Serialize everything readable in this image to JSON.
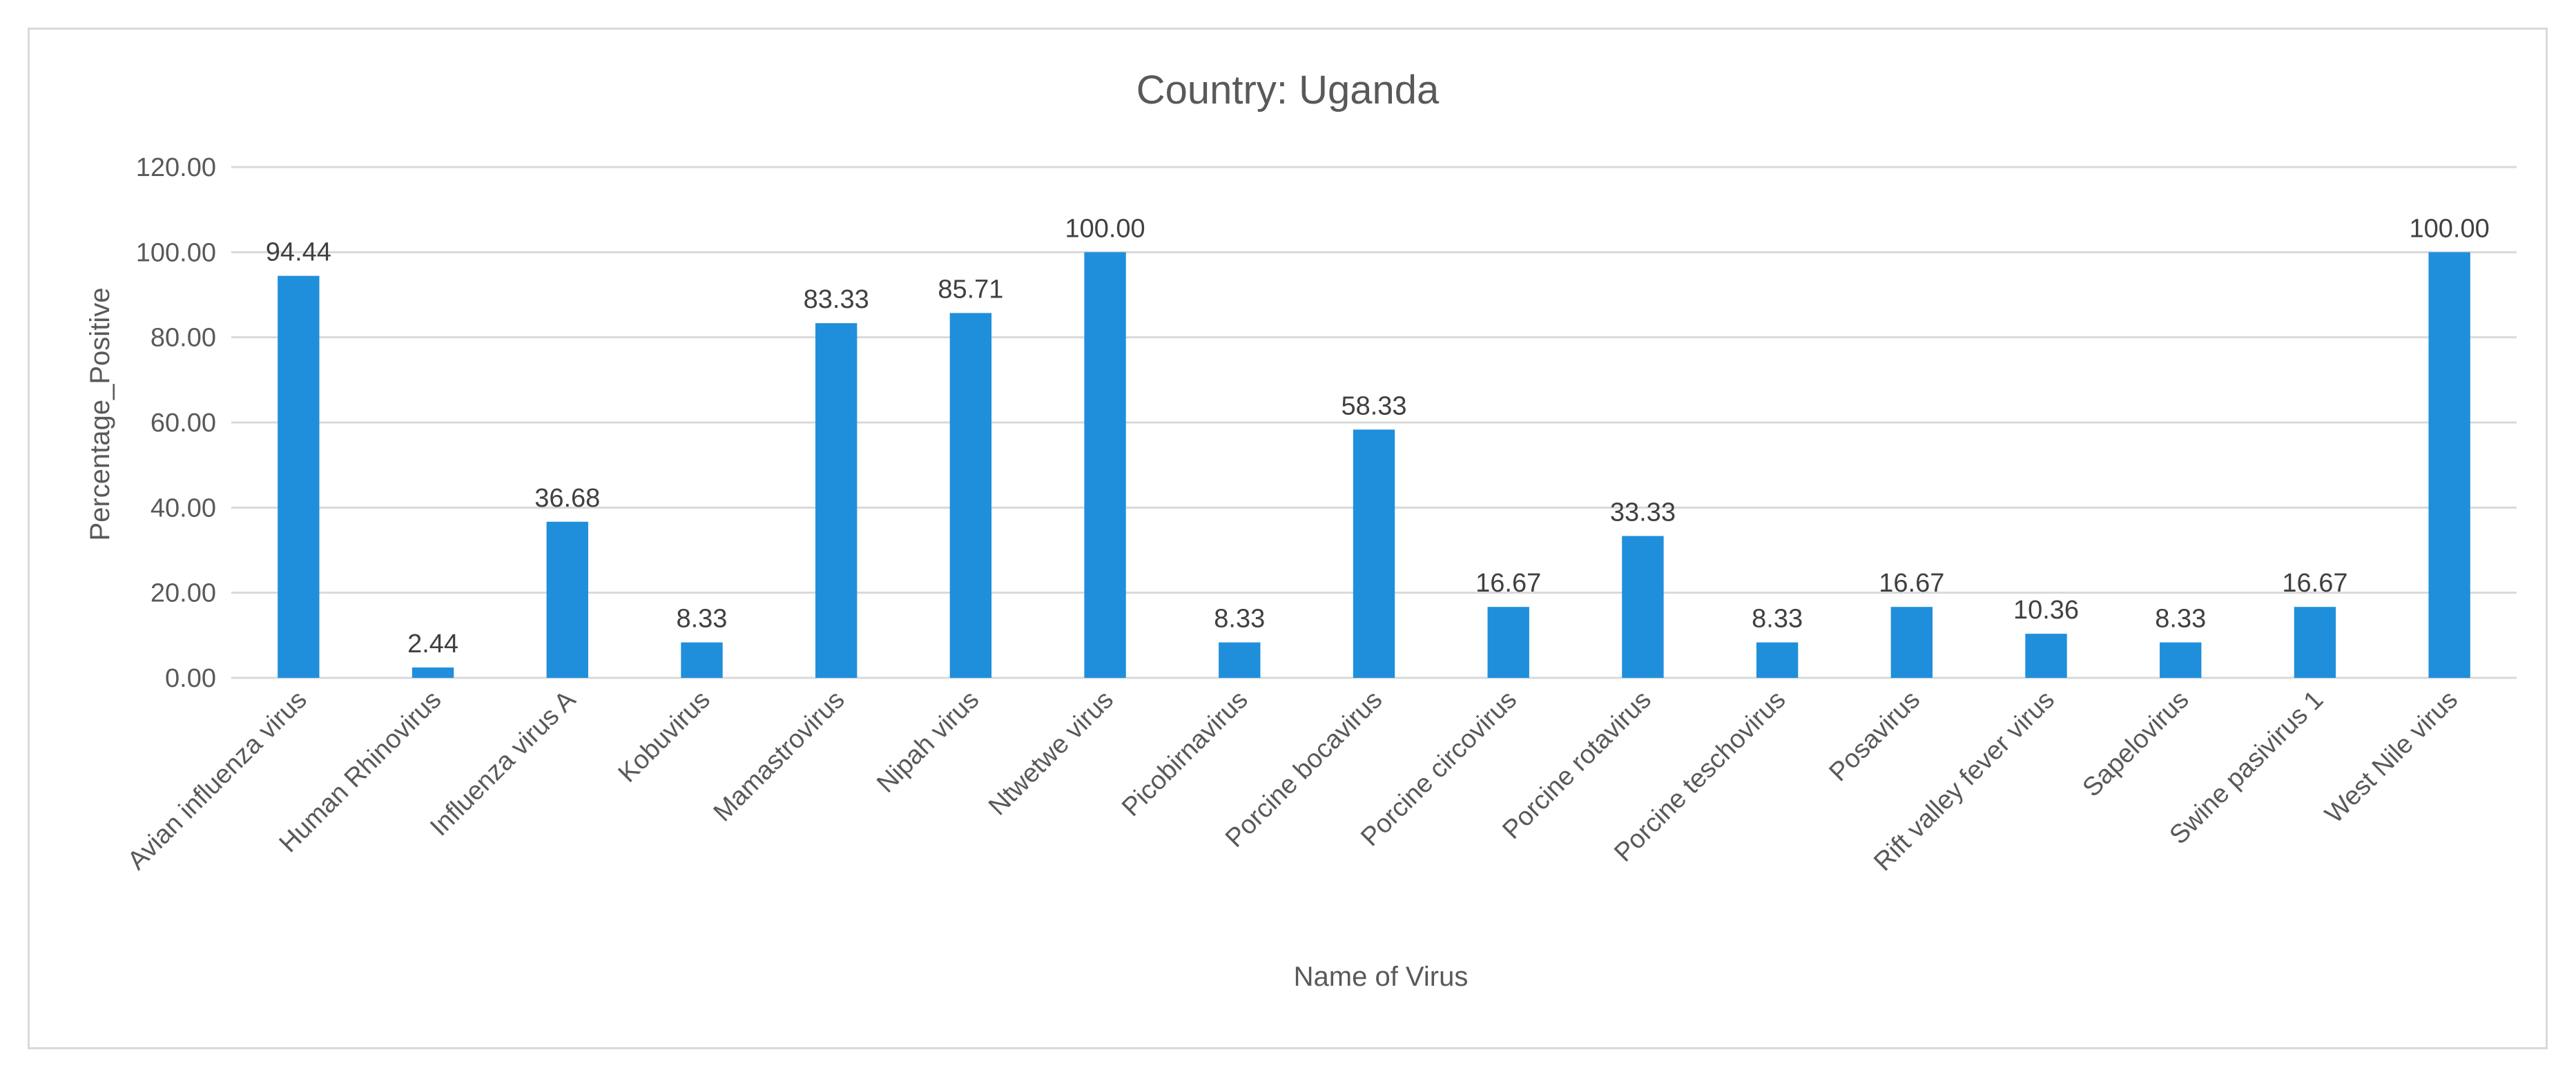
{
  "chart_data": {
    "type": "bar",
    "title": "Country: Uganda",
    "xlabel": "Name of Virus",
    "ylabel": "Percentage_Positive",
    "ylim": [
      0,
      120
    ],
    "yticks": [
      "0.00",
      "20.00",
      "40.00",
      "60.00",
      "80.00",
      "100.00",
      "120.00"
    ],
    "ytick_values": [
      0,
      20,
      40,
      60,
      80,
      100,
      120
    ],
    "grid": true,
    "bar_color": "#1f8fdb",
    "categories": [
      "Avian influenza virus",
      "Human Rhinovirus",
      "Influenza virus A",
      "Kobuvirus",
      "Mamastrovirus",
      "Nipah virus",
      "Ntwetwe virus",
      "Picobirnavirus",
      "Porcine bocavirus",
      "Porcine circovirus",
      "Porcine rotavirus",
      "Porcine teschovirus",
      "Posavirus",
      "Rift valley fever virus",
      "Sapelovirus",
      "Swine pasivirus 1",
      "West Nile virus"
    ],
    "values": [
      94.44,
      2.44,
      36.68,
      8.33,
      83.33,
      85.71,
      100.0,
      8.33,
      58.33,
      16.67,
      33.33,
      8.33,
      16.67,
      10.36,
      8.33,
      16.67,
      100.0
    ],
    "value_labels": [
      "94.44",
      "2.44",
      "36.68",
      "8.33",
      "83.33",
      "85.71",
      "100.00",
      "8.33",
      "58.33",
      "16.67",
      "33.33",
      "8.33",
      "16.67",
      "10.36",
      "8.33",
      "16.67",
      "100.00"
    ]
  }
}
